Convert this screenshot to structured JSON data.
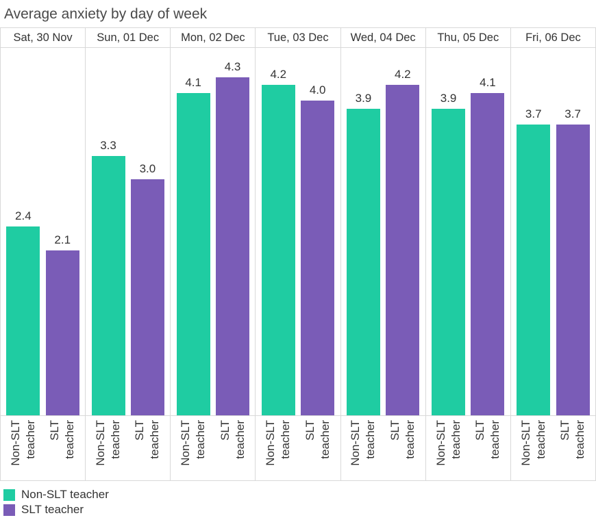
{
  "title": "Average anxiety by day of week",
  "colors": {
    "non_slt": "#1fcca2",
    "slt": "#7a5cb7",
    "grid": "#d8d8d8",
    "title_text": "#4a4a4a",
    "label_text": "#333333",
    "background": "#ffffff"
  },
  "chart_data": {
    "type": "bar",
    "title": "Average anxiety by day of week",
    "categories": [
      "Sat, 30 Nov",
      "Sun, 01 Dec",
      "Mon, 02 Dec",
      "Tue, 03 Dec",
      "Wed, 04 Dec",
      "Thu, 05 Dec",
      "Fri, 06 Dec"
    ],
    "series": [
      {
        "name": "Non-SLT teacher",
        "color": "#1fcca2",
        "tick_lines": [
          "Non-SLT",
          "teacher"
        ],
        "values": [
          2.4,
          3.3,
          4.1,
          4.2,
          3.9,
          3.9,
          3.7
        ]
      },
      {
        "name": "SLT teacher",
        "color": "#7a5cb7",
        "tick_lines": [
          "SLT",
          "teacher"
        ],
        "values": [
          2.1,
          3.0,
          4.3,
          4.0,
          4.2,
          4.1,
          3.7
        ]
      }
    ],
    "value_labels_decimals": 1,
    "ylim": [
      0,
      4.7
    ],
    "grid": "column-separators-only",
    "legend_position": "bottom-left",
    "x_tick_rotation_deg": -90
  },
  "legend": {
    "items": [
      {
        "label": "Non-SLT teacher",
        "color": "#1fcca2"
      },
      {
        "label": "SLT teacher",
        "color": "#7a5cb7"
      }
    ]
  }
}
